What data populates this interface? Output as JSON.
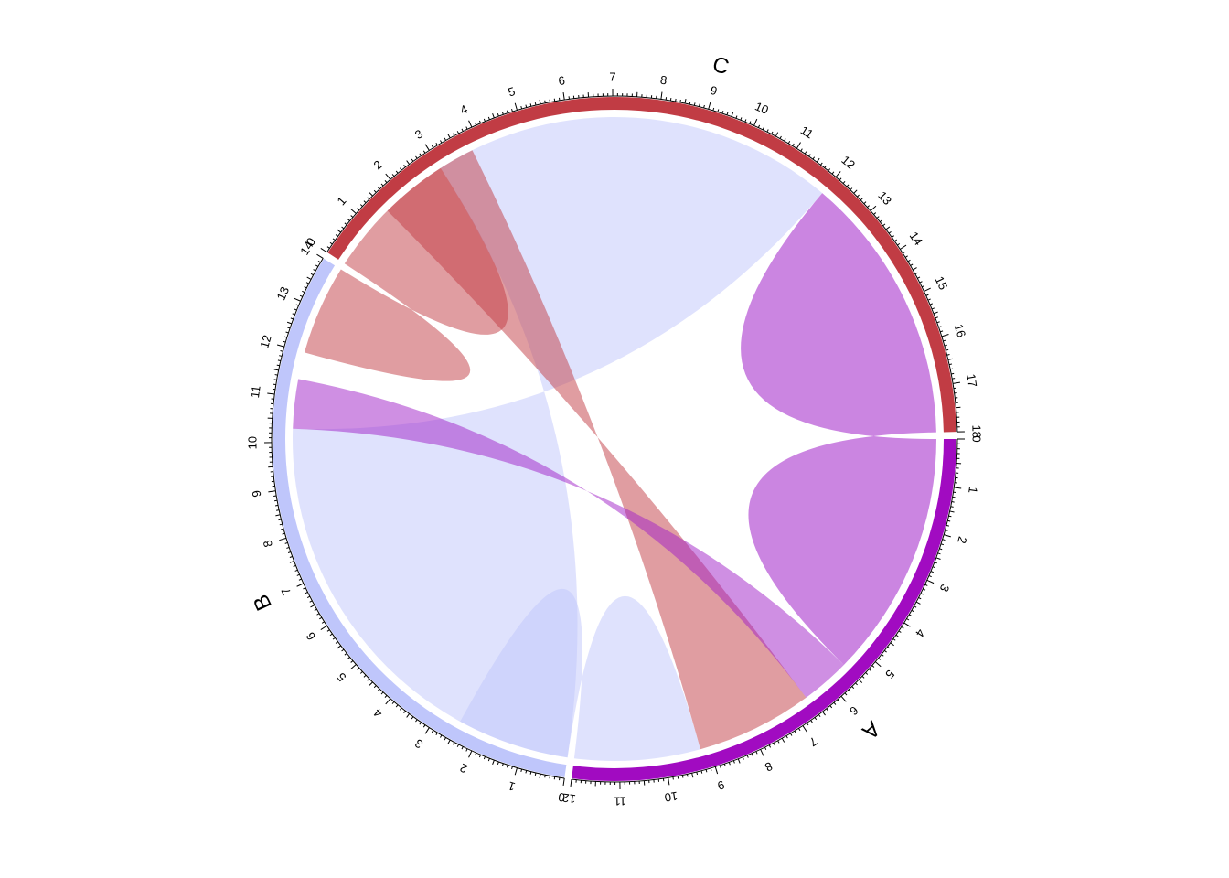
{
  "chart_data": {
    "type": "chord",
    "title": "",
    "sectors": [
      {
        "name": "A",
        "length": 12,
        "color": "#a10bc1"
      },
      {
        "name": "B",
        "length": 14,
        "color": "#bfc6fb"
      },
      {
        "name": "C",
        "length": 18,
        "color": "#c13c44"
      }
    ],
    "links": [
      {
        "from": "C",
        "from_range": [
          12,
          18
        ],
        "to": "A",
        "to_range": [
          0,
          5.5
        ],
        "color": "#a020c8",
        "opacity": 0.55
      },
      {
        "from": "C",
        "from_range": [
          0,
          3
        ],
        "to": "B",
        "to_range": [
          12,
          14
        ],
        "color": "#c13c44",
        "opacity": 0.5
      },
      {
        "from": "C",
        "from_range": [
          3,
          12
        ],
        "to": "B",
        "to_range": [
          0,
          10.3
        ],
        "color": "#bfc6fb",
        "opacity": 0.5
      },
      {
        "from": "C",
        "from_range": [
          1.5,
          3.8
        ],
        "to": "A",
        "to_range": [
          6.6,
          9.2
        ],
        "color": "#c13c44",
        "opacity": 0.5
      },
      {
        "from": "A",
        "from_range": [
          5.5,
          6.6
        ],
        "to": "B",
        "to_range": [
          10.3,
          11.4
        ],
        "color": "#a020c8",
        "opacity": 0.5
      },
      {
        "from": "A",
        "from_range": [
          9.2,
          12
        ],
        "to": "B",
        "to_range": [
          0,
          2.5
        ],
        "color": "#bfc6fb",
        "opacity": 0.5
      }
    ]
  }
}
